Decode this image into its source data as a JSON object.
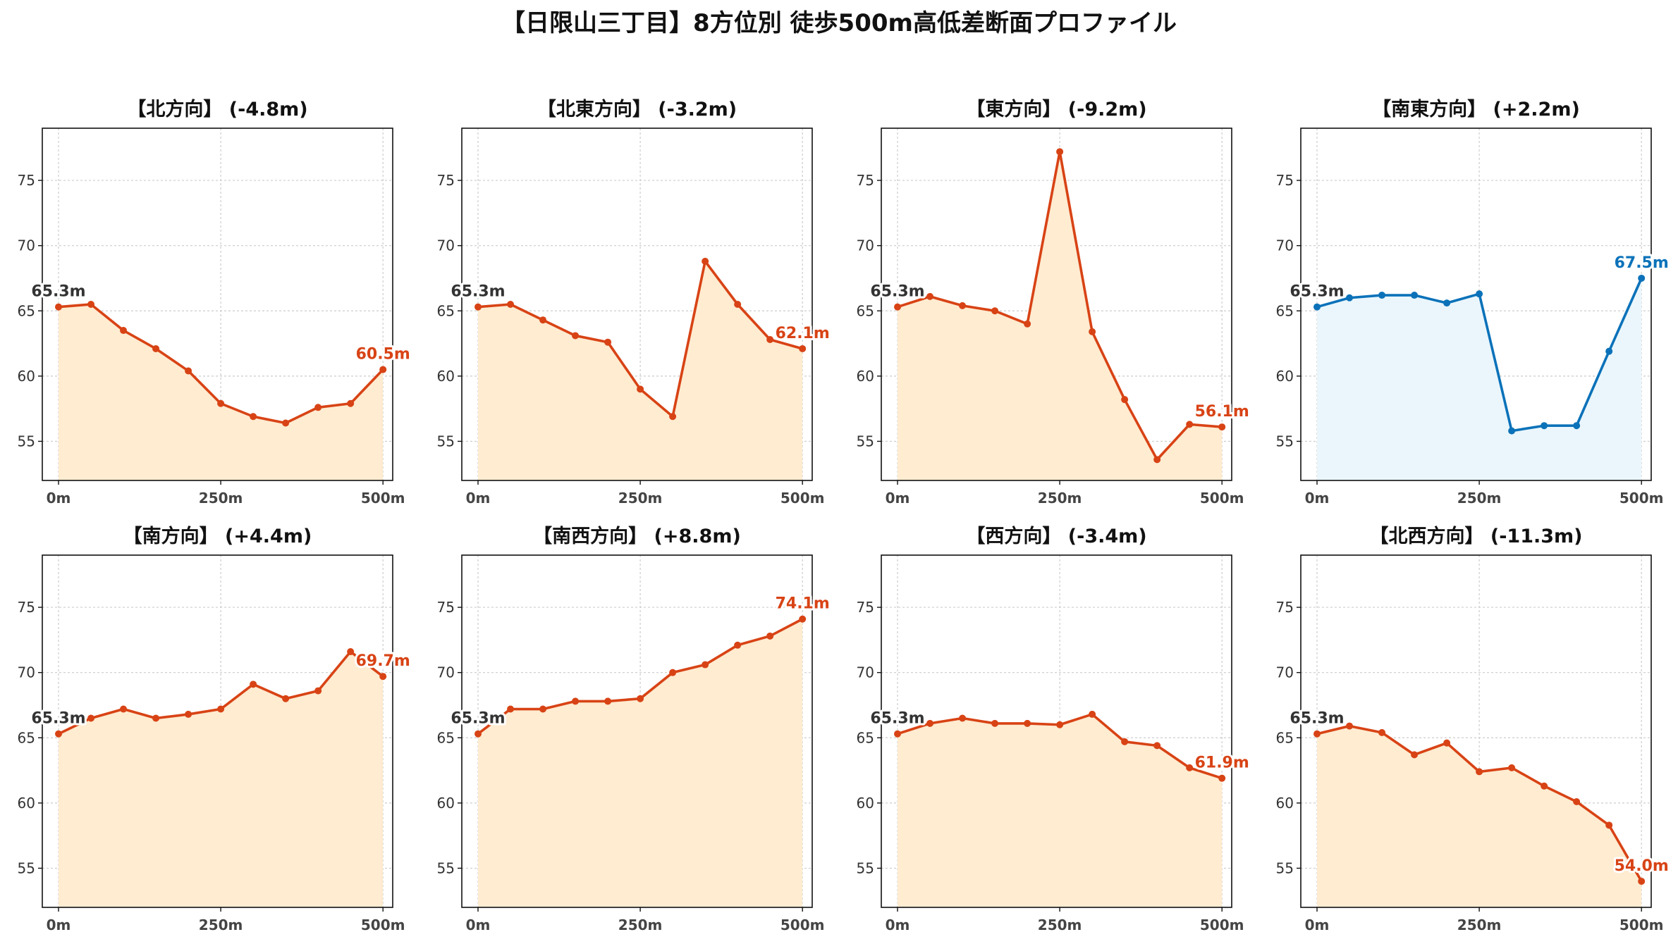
{
  "figure": {
    "title": "【日限山三丁目】8方位別 徒歩500m高低差断面プロファイル",
    "colors": {
      "down": "#d84315",
      "down_fill": "#ffecd1",
      "up": "#0b72b9",
      "up_fill": "#eaf6fc",
      "start_label": "#333333",
      "grid": "#cccccc"
    }
  },
  "chart_data": [
    {
      "type": "line",
      "title": "【北方向】 (-4.8m)",
      "trend": "down",
      "x": [
        0,
        50,
        100,
        150,
        200,
        250,
        300,
        350,
        400,
        450,
        500
      ],
      "y": [
        65.3,
        65.5,
        63.5,
        62.1,
        60.4,
        57.9,
        56.9,
        56.4,
        57.6,
        57.9,
        60.5
      ],
      "start_label": "65.3m",
      "end_label": "60.5m",
      "xticks": [
        "0m",
        "250m",
        "500m"
      ],
      "yticks": [
        55,
        60,
        65,
        70,
        75
      ],
      "xlim": [
        -25,
        515
      ],
      "ylim": [
        52,
        79
      ],
      "grid": true
    },
    {
      "type": "line",
      "title": "【北東方向】 (-3.2m)",
      "trend": "down",
      "x": [
        0,
        50,
        100,
        150,
        200,
        250,
        300,
        350,
        400,
        450,
        500
      ],
      "y": [
        65.3,
        65.5,
        64.3,
        63.1,
        62.6,
        59.0,
        56.9,
        68.8,
        65.5,
        62.8,
        62.1
      ],
      "start_label": "65.3m",
      "end_label": "62.1m",
      "xticks": [
        "0m",
        "250m",
        "500m"
      ],
      "yticks": [
        55,
        60,
        65,
        70,
        75
      ],
      "xlim": [
        -25,
        515
      ],
      "ylim": [
        52,
        79
      ],
      "grid": true
    },
    {
      "type": "line",
      "title": "【東方向】 (-9.2m)",
      "trend": "down",
      "x": [
        0,
        50,
        100,
        150,
        200,
        250,
        300,
        350,
        400,
        450,
        500
      ],
      "y": [
        65.3,
        66.1,
        65.4,
        65.0,
        64.0,
        77.2,
        63.4,
        58.2,
        53.6,
        56.3,
        56.1
      ],
      "start_label": "65.3m",
      "end_label": "56.1m",
      "xticks": [
        "0m",
        "250m",
        "500m"
      ],
      "yticks": [
        55,
        60,
        65,
        70,
        75
      ],
      "xlim": [
        -25,
        515
      ],
      "ylim": [
        52,
        79
      ],
      "grid": true
    },
    {
      "type": "line",
      "title": "【南東方向】 (+2.2m)",
      "trend": "up",
      "x": [
        0,
        50,
        100,
        150,
        200,
        250,
        300,
        350,
        400,
        450,
        500
      ],
      "y": [
        65.3,
        66.0,
        66.2,
        66.2,
        65.6,
        66.3,
        55.8,
        56.2,
        56.2,
        61.9,
        67.5
      ],
      "start_label": "65.3m",
      "end_label": "67.5m",
      "xticks": [
        "0m",
        "250m",
        "500m"
      ],
      "yticks": [
        55,
        60,
        65,
        70,
        75
      ],
      "xlim": [
        -25,
        515
      ],
      "ylim": [
        52,
        79
      ],
      "grid": true
    },
    {
      "type": "line",
      "title": "【南方向】 (+4.4m)",
      "trend": "down",
      "x": [
        0,
        50,
        100,
        150,
        200,
        250,
        300,
        350,
        400,
        450,
        500
      ],
      "y": [
        65.3,
        66.5,
        67.2,
        66.5,
        66.8,
        67.2,
        69.1,
        68.0,
        68.6,
        71.6,
        69.7
      ],
      "start_label": "65.3m",
      "end_label": "69.7m",
      "xticks": [
        "0m",
        "250m",
        "500m"
      ],
      "yticks": [
        55,
        60,
        65,
        70,
        75
      ],
      "xlim": [
        -25,
        515
      ],
      "ylim": [
        52,
        79
      ],
      "grid": true
    },
    {
      "type": "line",
      "title": "【南西方向】 (+8.8m)",
      "trend": "down",
      "x": [
        0,
        50,
        100,
        150,
        200,
        250,
        300,
        350,
        400,
        450,
        500
      ],
      "y": [
        65.3,
        67.2,
        67.2,
        67.8,
        67.8,
        68.0,
        70.0,
        70.6,
        72.1,
        72.8,
        74.1
      ],
      "start_label": "65.3m",
      "end_label": "74.1m",
      "xticks": [
        "0m",
        "250m",
        "500m"
      ],
      "yticks": [
        55,
        60,
        65,
        70,
        75
      ],
      "xlim": [
        -25,
        515
      ],
      "ylim": [
        52,
        79
      ],
      "grid": true
    },
    {
      "type": "line",
      "title": "【西方向】 (-3.4m)",
      "trend": "down",
      "x": [
        0,
        50,
        100,
        150,
        200,
        250,
        300,
        350,
        400,
        450,
        500
      ],
      "y": [
        65.3,
        66.1,
        66.5,
        66.1,
        66.1,
        66.0,
        66.8,
        64.7,
        64.4,
        62.7,
        61.9
      ],
      "start_label": "65.3m",
      "end_label": "61.9m",
      "xticks": [
        "0m",
        "250m",
        "500m"
      ],
      "yticks": [
        55,
        60,
        65,
        70,
        75
      ],
      "xlim": [
        -25,
        515
      ],
      "ylim": [
        52,
        79
      ],
      "grid": true
    },
    {
      "type": "line",
      "title": "【北西方向】 (-11.3m)",
      "trend": "down",
      "x": [
        0,
        50,
        100,
        150,
        200,
        250,
        300,
        350,
        400,
        450,
        500
      ],
      "y": [
        65.3,
        65.9,
        65.4,
        63.7,
        64.6,
        62.4,
        62.7,
        61.3,
        60.1,
        58.3,
        54.0
      ],
      "start_label": "65.3m",
      "end_label": "54.0m",
      "xticks": [
        "0m",
        "250m",
        "500m"
      ],
      "yticks": [
        55,
        60,
        65,
        70,
        75
      ],
      "xlim": [
        -25,
        515
      ],
      "ylim": [
        52,
        79
      ],
      "grid": true
    }
  ]
}
